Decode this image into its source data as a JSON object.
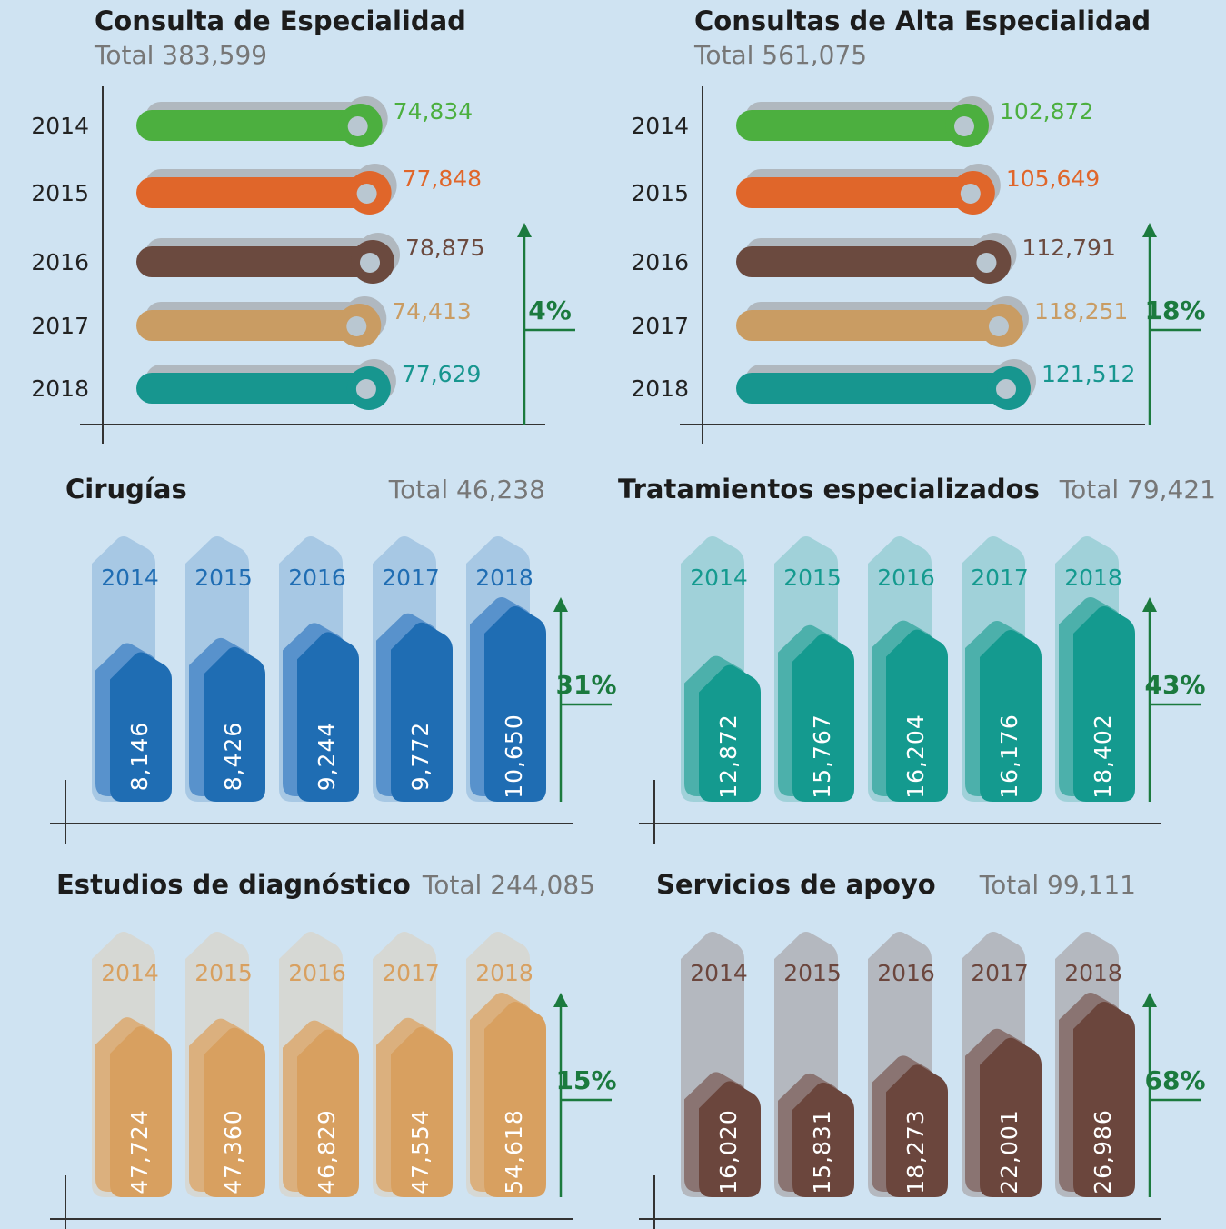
{
  "chart_data": [
    {
      "type": "barh",
      "title": "Consulta de Especialidad",
      "subtitle": "Total 383,599",
      "categories": [
        "2014",
        "2015",
        "2016",
        "2017",
        "2018"
      ],
      "values": [
        74834,
        77848,
        78875,
        74413,
        77629
      ],
      "value_labels": [
        "74,834",
        "77,848",
        "78,875",
        "74,413",
        "77,629"
      ],
      "colors": [
        "#4caf3f",
        "#e0662a",
        "#6b4a3f",
        "#c99c63",
        "#17968f"
      ],
      "annotation": "4%"
    },
    {
      "type": "barh",
      "title": "Consultas de Alta Especialidad",
      "subtitle": "Total 561,075",
      "categories": [
        "2014",
        "2015",
        "2016",
        "2017",
        "2018"
      ],
      "values": [
        102872,
        105649,
        112791,
        118251,
        121512
      ],
      "value_labels": [
        "102,872",
        "105,649",
        "112,791",
        "118,251",
        "121,512"
      ],
      "colors": [
        "#4caf3f",
        "#e0662a",
        "#6b4a3f",
        "#c99c63",
        "#17968f"
      ],
      "annotation": "18%"
    },
    {
      "type": "column",
      "title": "Cirugías",
      "subtitle": "Total 46,238",
      "categories": [
        "2014",
        "2015",
        "2016",
        "2017",
        "2018"
      ],
      "values": [
        8146,
        8426,
        9244,
        9772,
        10650
      ],
      "value_labels": [
        "8,146",
        "8,426",
        "9,244",
        "9,772",
        "10,650"
      ],
      "color": "#1f6db3",
      "shade_color": "#5892cc",
      "track_color": "#a7c8e4",
      "annotation": "31%"
    },
    {
      "type": "column",
      "title": "Tratamientos especializados",
      "subtitle": "Total 79,421",
      "categories": [
        "2014",
        "2015",
        "2016",
        "2017",
        "2018"
      ],
      "values": [
        12872,
        15767,
        16204,
        16176,
        18402
      ],
      "value_labels": [
        "12,872",
        "15,767",
        "16,204",
        "16,176",
        "18,402"
      ],
      "color": "#149a8f",
      "shade_color": "#4cb0ab",
      "track_color": "#a0d1d9",
      "annotation": "43%"
    },
    {
      "type": "column",
      "title": "Estudios de diagnóstico",
      "subtitle": "Total 244,085",
      "categories": [
        "2014",
        "2015",
        "2016",
        "2017",
        "2018"
      ],
      "values": [
        47724,
        47360,
        46829,
        47554,
        54618
      ],
      "value_labels": [
        "47,724",
        "47,360",
        "46,829",
        "47,554",
        "54,618"
      ],
      "color": "#d8a060",
      "shade_color": "#dbb07e",
      "track_color": "#d6d8d4",
      "annotation": "15%"
    },
    {
      "type": "column",
      "title": "Servicios de apoyo",
      "subtitle": "Total 99,111",
      "categories": [
        "2014",
        "2015",
        "2016",
        "2017",
        "2018"
      ],
      "values": [
        16020,
        15831,
        18273,
        22001,
        26986
      ],
      "value_labels": [
        "16,020",
        "15,831",
        "18,273",
        "22,001",
        "26,986"
      ],
      "color": "#6b463d",
      "shade_color": "#8a7472",
      "track_color": "#b4b8bf",
      "annotation": "68%"
    }
  ]
}
